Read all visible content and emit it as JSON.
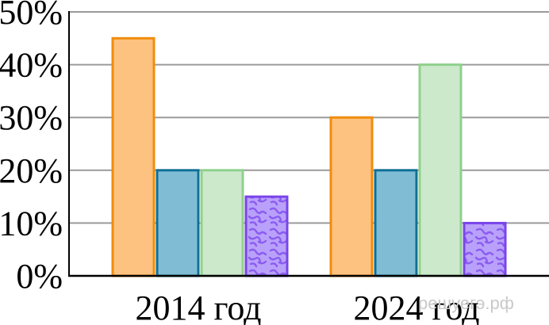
{
  "chart_data": {
    "type": "bar",
    "categories": [
      "2014 год",
      "2024 год"
    ],
    "series": [
      {
        "values": [
          45,
          30
        ],
        "fill": "#fdc27f",
        "stroke": "#f08c0c",
        "pattern": "solid"
      },
      {
        "values": [
          20,
          20
        ],
        "fill": "#80bdd4",
        "stroke": "#116f96",
        "pattern": "solid"
      },
      {
        "values": [
          20,
          40
        ],
        "fill": "#cde9cc",
        "stroke": "#8fd18c",
        "pattern": "solid"
      },
      {
        "values": [
          15,
          10
        ],
        "fill": "#b9a1fb",
        "stroke": "#7a44ea",
        "pattern": "squiggle"
      }
    ],
    "y_ticks": [
      0,
      10,
      20,
      30,
      40,
      50
    ],
    "y_tick_labels": [
      "0%",
      "10%",
      "20%",
      "30%",
      "40%",
      "50%"
    ],
    "ylim": [
      0,
      50
    ],
    "grid": true,
    "legend": "none"
  },
  "watermark": "решуегэ.рф"
}
